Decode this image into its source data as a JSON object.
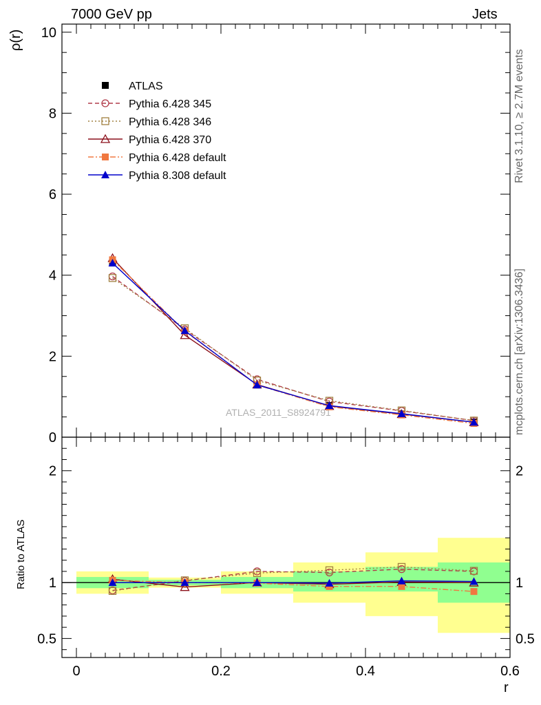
{
  "header": {
    "left": "7000 GeV pp",
    "right": "Jets"
  },
  "side_labels": {
    "rivet": "Rivet 3.1.10, ≥ 2.7M events",
    "mcplots": "mcplots.cern.ch [arXiv:1306.3436]"
  },
  "watermark": "ATLAS_2011_S8924791",
  "chart_data": [
    {
      "type": "line",
      "panel": "main",
      "ylabel": "ρ(r)",
      "xlabel": "r",
      "xlim": [
        -0.02,
        0.6
      ],
      "ylim": [
        0,
        10.2
      ],
      "yticks": [
        0,
        2,
        4,
        6,
        8,
        10
      ],
      "ytick_labels": [
        "0",
        "2",
        "4",
        "6",
        "8",
        "10"
      ],
      "grid": false,
      "legend_position": "top-left",
      "x": [
        0.05,
        0.15,
        0.25,
        0.35,
        0.45,
        0.55
      ],
      "series": [
        {
          "name": "ATLAS",
          "values": [
            4.3,
            2.62,
            1.29,
            0.78,
            0.57,
            0.37
          ],
          "color": "#000000",
          "marker": "square-filled",
          "line": "none"
        },
        {
          "name": "Pythia 6.428 345",
          "values": [
            3.97,
            2.66,
            1.43,
            0.88,
            0.65,
            0.41
          ],
          "color": "#b03a48",
          "marker": "circle-open",
          "line": "dashed"
        },
        {
          "name": "Pythia 6.428 346",
          "values": [
            3.93,
            2.69,
            1.4,
            0.9,
            0.66,
            0.41
          ],
          "color": "#a08040",
          "marker": "square-open",
          "line": "dotted"
        },
        {
          "name": "Pythia 6.428 370",
          "values": [
            4.42,
            2.52,
            1.3,
            0.77,
            0.57,
            0.37
          ],
          "color": "#8b0f1a",
          "marker": "triangle-open",
          "line": "solid"
        },
        {
          "name": "Pythia 6.428 default",
          "values": [
            4.38,
            2.62,
            1.29,
            0.75,
            0.55,
            0.34
          ],
          "color": "#f07840",
          "marker": "square-filled",
          "line": "dashdot"
        },
        {
          "name": "Pythia 8.308 default",
          "values": [
            4.3,
            2.63,
            1.29,
            0.78,
            0.58,
            0.37
          ],
          "color": "#0000cc",
          "marker": "triangle-filled",
          "line": "solid"
        }
      ]
    },
    {
      "type": "line",
      "panel": "ratio",
      "ylabel": "Ratio to ATLAS",
      "xlabel": "r",
      "xlim": [
        -0.02,
        0.6
      ],
      "ylim": [
        0.33,
        2.3
      ],
      "yticks": [
        0.5,
        1,
        2
      ],
      "ytick_labels": [
        "0.5",
        "1",
        "2"
      ],
      "xticks": [
        0,
        0.2,
        0.4,
        0.6
      ],
      "xtick_labels": [
        "0",
        "0.2",
        "0.4",
        "0.6"
      ],
      "reference_line": 1,
      "bands": [
        {
          "x0": 0.0,
          "x1": 0.1,
          "inner": [
            0.95,
            1.05
          ],
          "outer": [
            0.9,
            1.1
          ]
        },
        {
          "x0": 0.1,
          "x1": 0.2,
          "inner": [
            0.975,
            1.025
          ],
          "outer": [
            0.955,
            1.045
          ]
        },
        {
          "x0": 0.2,
          "x1": 0.3,
          "inner": [
            0.95,
            1.05
          ],
          "outer": [
            0.9,
            1.1
          ]
        },
        {
          "x0": 0.3,
          "x1": 0.4,
          "inner": [
            0.92,
            1.1
          ],
          "outer": [
            0.82,
            1.18
          ]
        },
        {
          "x0": 0.4,
          "x1": 0.5,
          "inner": [
            0.92,
            1.14
          ],
          "outer": [
            0.7,
            1.27
          ]
        },
        {
          "x0": 0.5,
          "x1": 0.6,
          "inner": [
            0.82,
            1.18
          ],
          "outer": [
            0.55,
            1.4
          ]
        }
      ],
      "band_colors": {
        "inner": "#90ff90",
        "outer": "#ffff90"
      },
      "x": [
        0.05,
        0.15,
        0.25,
        0.35,
        0.45,
        0.55
      ],
      "series": [
        {
          "name": "Pythia 6.428 345",
          "values": [
            0.93,
            1.015,
            1.1,
            1.09,
            1.12,
            1.1
          ],
          "color": "#b03a48",
          "marker": "circle-open",
          "line": "dashed"
        },
        {
          "name": "Pythia 6.428 346",
          "values": [
            0.925,
            1.02,
            1.085,
            1.11,
            1.14,
            1.105
          ],
          "color": "#a08040",
          "marker": "square-open",
          "line": "dotted"
        },
        {
          "name": "Pythia 6.428 370",
          "values": [
            1.03,
            0.96,
            1.0,
            0.985,
            1.005,
            1.0
          ],
          "color": "#8b0f1a",
          "marker": "triangle-open",
          "line": "solid"
        },
        {
          "name": "Pythia 6.428 default",
          "values": [
            1.02,
            1.0,
            0.995,
            0.965,
            0.965,
            0.92
          ],
          "color": "#f07840",
          "marker": "square-filled",
          "line": "dashdot"
        },
        {
          "name": "Pythia 8.308 default",
          "values": [
            1.0,
            1.0,
            1.0,
            0.995,
            1.015,
            1.01
          ],
          "color": "#0000cc",
          "marker": "triangle-filled",
          "line": "solid"
        }
      ]
    }
  ]
}
